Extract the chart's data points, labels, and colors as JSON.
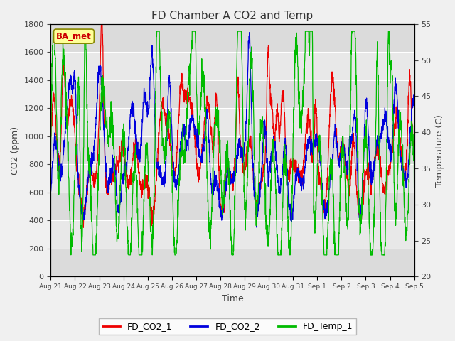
{
  "title": "FD Chamber A CO2 and Temp",
  "xlabel": "Time",
  "ylabel_left": "CO2 (ppm)",
  "ylabel_right": "Temperature (C)",
  "ylim_left": [
    0,
    1800
  ],
  "ylim_right": [
    20,
    55
  ],
  "yticks_left": [
    0,
    200,
    400,
    600,
    800,
    1000,
    1200,
    1400,
    1600,
    1800
  ],
  "yticks_right": [
    20,
    25,
    30,
    35,
    40,
    45,
    50,
    55
  ],
  "x_labels": [
    "Aug 21",
    "Aug 22",
    "Aug 23",
    "Aug 24",
    "Aug 25",
    "Aug 26",
    "Aug 27",
    "Aug 28",
    "Aug 29",
    "Aug 30",
    "Aug 31",
    "Sep 1",
    "Sep 2",
    "Sep 3",
    "Sep 4",
    "Sep 5"
  ],
  "n_days": 15,
  "bg_color": "#f0f0f0",
  "plot_bg": "#e8e8e8",
  "line_co2_1": "#ee0000",
  "line_co2_2": "#0000dd",
  "line_temp": "#00bb00",
  "annotation_text": "BA_met",
  "annotation_color": "#cc0000",
  "annotation_bg": "#ffff99",
  "legend_labels": [
    "FD_CO2_1",
    "FD_CO2_2",
    "FD_Temp_1"
  ],
  "legend_colors": [
    "#ee0000",
    "#0000dd",
    "#00bb00"
  ],
  "band_colors": [
    "#e8e8e8",
    "#d8d8d8"
  ]
}
